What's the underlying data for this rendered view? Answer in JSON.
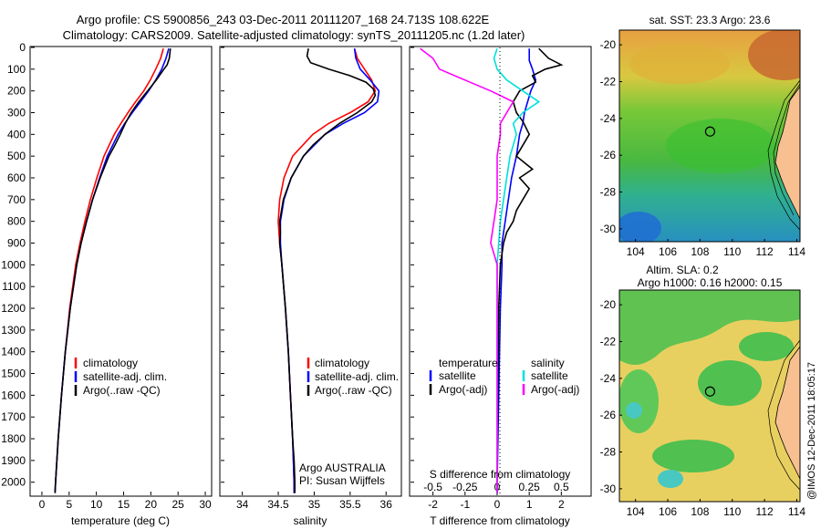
{
  "header": {
    "line1": "Argo profile: CS 5900856_243 03-Dec-2011 20111207_168 24.713S 108.622E",
    "line2": "Climatology: CARS2009. Satellite-adjusted climatology: synTS_20111205.nc (1.2d later)"
  },
  "footer": {
    "credit": "Argo AUSTRALIA",
    "pi": "PI: Susan Wijffels",
    "timestamp": "@IMOS 12-Dec-2011 18:05:17"
  },
  "colors": {
    "climatology": "#ff0000",
    "satellite": "#0000ff",
    "argo": "#000000",
    "salinity_satellite": "#00e0e0",
    "salinity_argo": "#ff00ff"
  },
  "chart_data": [
    {
      "type": "line",
      "panel": "temperature",
      "xlabel": "temperature (deg C)",
      "xlim": [
        -2,
        31
      ],
      "xticks": [
        0,
        5,
        10,
        15,
        20,
        25,
        30
      ],
      "ylim": [
        2060,
        0
      ],
      "yticks": [
        0,
        100,
        200,
        300,
        400,
        500,
        600,
        700,
        800,
        900,
        1000,
        1100,
        1200,
        1300,
        1400,
        1500,
        1600,
        1700,
        1800,
        1900,
        2000
      ],
      "legend": [
        "climatology",
        "satellite-adj. clim.",
        "Argo(..raw -QC)"
      ],
      "series": [
        {
          "name": "climatology",
          "color": "#ff0000",
          "depth": [
            5,
            50,
            100,
            150,
            200,
            250,
            300,
            350,
            400,
            500,
            600,
            700,
            800,
            900,
            1000,
            1200,
            1400,
            1600,
            1800,
            2000,
            2050
          ],
          "values": [
            22.3,
            21.8,
            20.9,
            19.9,
            18.7,
            17.2,
            15.8,
            14.5,
            13.3,
            11.4,
            10.1,
            8.9,
            7.9,
            7.0,
            6.2,
            5.1,
            4.3,
            3.6,
            3.0,
            2.5,
            2.4
          ]
        },
        {
          "name": "satellite-adj. clim.",
          "color": "#0000ff",
          "depth": [
            5,
            50,
            100,
            150,
            200,
            250,
            300,
            350,
            400,
            500,
            600,
            700,
            800,
            900,
            1000,
            1200,
            1400,
            1600,
            1800,
            2000,
            2050
          ],
          "values": [
            23.3,
            22.8,
            22.0,
            20.9,
            19.6,
            18.1,
            16.6,
            15.2,
            14.0,
            12.0,
            10.6,
            9.3,
            8.2,
            7.2,
            6.4,
            5.2,
            4.3,
            3.6,
            3.0,
            2.5,
            2.4
          ]
        },
        {
          "name": "Argo(..raw -QC)",
          "color": "#000000",
          "depth": [
            5,
            50,
            80,
            100,
            150,
            200,
            250,
            300,
            350,
            400,
            450,
            500,
            600,
            700,
            800,
            900,
            1000,
            1200,
            1400,
            1600,
            1800,
            2000,
            2050
          ],
          "values": [
            23.6,
            23.4,
            23.0,
            22.4,
            21.0,
            19.4,
            17.8,
            16.4,
            15.3,
            14.4,
            13.4,
            12.3,
            10.7,
            9.3,
            8.2,
            7.2,
            6.4,
            5.2,
            4.3,
            3.6,
            3.0,
            2.5,
            2.4
          ]
        }
      ]
    },
    {
      "type": "line",
      "panel": "salinity",
      "xlabel": "salinity",
      "xlim": [
        33.7,
        36.2
      ],
      "xticks": [
        34,
        34.5,
        35,
        35.5,
        36
      ],
      "xtick_labels": [
        "34",
        "34.5",
        "35",
        "35.5",
        "36"
      ],
      "ylim": [
        2060,
        0
      ],
      "legend": [
        "climatology",
        "satellite-adj. clim.",
        "Argo(..raw -QC)"
      ],
      "series": [
        {
          "name": "climatology",
          "color": "#ff0000",
          "depth": [
            5,
            50,
            100,
            150,
            200,
            250,
            300,
            350,
            400,
            500,
            600,
            700,
            800,
            900,
            1000,
            1200,
            1400,
            1600,
            1800,
            2000,
            2050
          ],
          "values": [
            35.56,
            35.6,
            35.7,
            35.8,
            35.85,
            35.75,
            35.5,
            35.2,
            34.98,
            34.7,
            34.58,
            34.52,
            34.5,
            34.52,
            34.55,
            34.6,
            34.64,
            34.67,
            34.7,
            34.72,
            34.72
          ]
        },
        {
          "name": "satellite-adj. clim.",
          "color": "#0000ff",
          "depth": [
            5,
            50,
            100,
            150,
            200,
            250,
            300,
            350,
            400,
            500,
            600,
            700,
            800,
            900,
            1000,
            1200,
            1400,
            1600,
            1800,
            2000,
            2050
          ],
          "values": [
            35.56,
            35.58,
            35.64,
            35.78,
            35.9,
            35.88,
            35.7,
            35.4,
            35.15,
            34.85,
            34.68,
            34.58,
            34.53,
            34.53,
            34.55,
            34.6,
            34.64,
            34.67,
            34.7,
            34.72,
            34.72
          ]
        },
        {
          "name": "Argo(..raw -QC)",
          "color": "#000000",
          "depth": [
            5,
            40,
            70,
            100,
            130,
            160,
            190,
            220,
            250,
            300,
            350,
            400,
            450,
            500,
            600,
            700,
            800,
            850,
            900,
            1000,
            1200,
            1400,
            1600,
            1800,
            1900,
            2000,
            2050
          ],
          "values": [
            34.92,
            34.9,
            34.95,
            35.2,
            35.5,
            35.72,
            35.82,
            35.85,
            35.8,
            35.6,
            35.35,
            35.15,
            34.98,
            34.85,
            34.68,
            34.57,
            34.52,
            34.53,
            34.52,
            34.55,
            34.6,
            34.64,
            34.67,
            34.7,
            34.72,
            34.73,
            34.73
          ]
        }
      ]
    },
    {
      "type": "line",
      "panel": "difference",
      "xlabel": "T difference from climatology",
      "xlabel_top": "S difference from climatology",
      "xlim": [
        -2.7,
        2.9
      ],
      "xticks": [
        -2,
        -1,
        0,
        1,
        2
      ],
      "s_ticks": [
        -0.5,
        -0.25,
        0,
        0.25,
        0.5
      ],
      "s_tick_labels": [
        "-0.5",
        "-0.25",
        "0",
        "0.25",
        "0.5"
      ],
      "ylim": [
        2060,
        0
      ],
      "legend_temperature_title": "temperature",
      "legend_salinity_title": "salinity",
      "legend_satellite": "satellite",
      "legend_argo": "Argo(-adj)",
      "series": [
        {
          "name": "temperature satellite",
          "color": "#0000ff",
          "depth": [
            5,
            60,
            100,
            150,
            200,
            250,
            300,
            350,
            400,
            500,
            600,
            700,
            800,
            900,
            1000,
            1200,
            1600,
            2000,
            2050
          ],
          "values": [
            1.0,
            1.0,
            1.1,
            1.2,
            1.05,
            0.95,
            0.85,
            0.8,
            0.7,
            0.6,
            0.45,
            0.35,
            0.25,
            0.15,
            0.15,
            0.1,
            0.05,
            0.0,
            0.0
          ]
        },
        {
          "name": "temperature Argo(-adj)",
          "color": "#000000",
          "depth": [
            5,
            50,
            80,
            100,
            130,
            160,
            200,
            250,
            300,
            340,
            400,
            450,
            500,
            560,
            600,
            650,
            700,
            750,
            800,
            850,
            900,
            1000,
            1200,
            1600,
            2000,
            2050
          ],
          "values": [
            1.3,
            1.6,
            2.0,
            1.5,
            1.1,
            1.2,
            0.7,
            0.5,
            0.6,
            0.8,
            1.0,
            0.8,
            0.6,
            1.1,
            0.7,
            1.0,
            0.8,
            0.6,
            0.5,
            0.3,
            0.2,
            0.1,
            0.05,
            0.02,
            0.0,
            0.0
          ]
        },
        {
          "name": "salinity satellite",
          "color": "#00e0e0",
          "depth": [
            5,
            50,
            100,
            150,
            200,
            250,
            300,
            350,
            400,
            500,
            600,
            700,
            800,
            900,
            1000,
            1200,
            1600,
            2000,
            2050
          ],
          "values": [
            0.0,
            -0.1,
            0.0,
            0.3,
            0.8,
            1.3,
            0.8,
            0.5,
            0.6,
            0.4,
            0.3,
            0.2,
            0.1,
            0.05,
            0.0,
            0.0,
            0.0,
            0.0,
            0.0
          ]
        },
        {
          "name": "salinity Argo(-adj)",
          "color": "#ff00ff",
          "depth": [
            5,
            50,
            100,
            150,
            200,
            250,
            300,
            350,
            400,
            500,
            600,
            700,
            800,
            900,
            950,
            1000,
            1200,
            1600,
            2000,
            2050
          ],
          "values": [
            -2.4,
            -2.0,
            -1.8,
            -1.0,
            -0.2,
            0.5,
            0.3,
            0.1,
            0.1,
            0.0,
            0.0,
            0.0,
            -0.1,
            -0.2,
            -0.1,
            0.0,
            0.0,
            0.0,
            0.0,
            0.0
          ]
        }
      ]
    },
    {
      "type": "heatmap",
      "panel": "sst_map",
      "title": "sat. SST: 23.3 Argo: 23.6",
      "xlim": [
        103,
        114.2
      ],
      "ylim": [
        -30.7,
        -19.2
      ],
      "xticks": [
        104,
        106,
        108,
        110,
        112,
        114
      ],
      "yticks": [
        -20,
        -22,
        -24,
        -26,
        -28,
        -30
      ],
      "marker": {
        "lon": 108.622,
        "lat": -24.713
      }
    },
    {
      "type": "heatmap",
      "panel": "sla_map",
      "title": "Altim. SLA: 0.2",
      "subtitle": "Argo h1000: 0.16 h2000: 0.15",
      "xlim": [
        103,
        114.2
      ],
      "ylim": [
        -30.7,
        -19.2
      ],
      "xticks": [
        104,
        106,
        108,
        110,
        112,
        114
      ],
      "yticks": [
        -20,
        -22,
        -24,
        -26,
        -28,
        -30
      ],
      "marker": {
        "lon": 108.622,
        "lat": -24.713
      }
    }
  ]
}
